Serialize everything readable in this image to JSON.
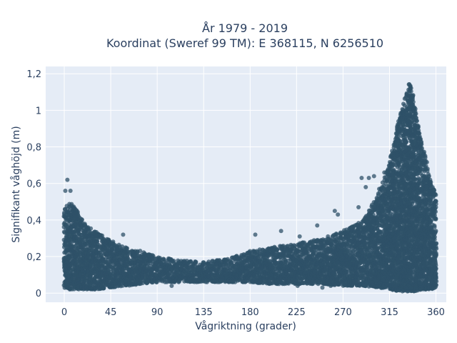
{
  "chart_data": {
    "type": "scatter",
    "title_line1": "År 1979 - 2019",
    "title_line2": "Koordinat (Sweref 99 TM): E 368115, N 6256510",
    "xlabel": "Vågriktning (grader)",
    "ylabel": "Signifikant våghöjd (m)",
    "xlim": [
      -18,
      370
    ],
    "ylim": [
      -0.05,
      1.24
    ],
    "xticks": [
      0,
      45,
      90,
      135,
      180,
      225,
      270,
      315,
      360
    ],
    "yticks": [
      0,
      0.2,
      0.4,
      0.6,
      0.8,
      1,
      1.2
    ],
    "xtick_labels": [
      "0",
      "45",
      "90",
      "135",
      "180",
      "225",
      "270",
      "315",
      "360"
    ],
    "ytick_labels": [
      "0",
      "0,2",
      "0,4",
      "0,6",
      "0,8",
      "1",
      "1,2"
    ],
    "grid": true,
    "colors": {
      "plot_bg": "#e5ecf6",
      "marker": "#2f5168"
    },
    "envelope": {
      "direction_deg": [
        0,
        5,
        10,
        20,
        30,
        45,
        60,
        75,
        90,
        110,
        135,
        160,
        180,
        200,
        225,
        250,
        270,
        290,
        305,
        315,
        322,
        330,
        335,
        340,
        345,
        350,
        355,
        360
      ],
      "min_height_m": [
        0.03,
        0.02,
        0.02,
        0.02,
        0.02,
        0.03,
        0.04,
        0.05,
        0.06,
        0.06,
        0.06,
        0.06,
        0.06,
        0.05,
        0.05,
        0.05,
        0.04,
        0.04,
        0.03,
        0.02,
        0.01,
        0.01,
        0.01,
        0.01,
        0.02,
        0.02,
        0.02,
        0.03
      ],
      "max_height_m": [
        0.46,
        0.5,
        0.47,
        0.38,
        0.34,
        0.29,
        0.25,
        0.23,
        0.2,
        0.18,
        0.17,
        0.19,
        0.23,
        0.25,
        0.27,
        0.3,
        0.34,
        0.4,
        0.55,
        0.72,
        0.9,
        1.08,
        1.17,
        1.0,
        0.85,
        0.75,
        0.6,
        0.55
      ]
    },
    "outliers": [
      {
        "x": 3,
        "y": 0.62
      },
      {
        "x": 1,
        "y": 0.56
      },
      {
        "x": 6,
        "y": 0.56
      },
      {
        "x": 57,
        "y": 0.32
      },
      {
        "x": 185,
        "y": 0.32
      },
      {
        "x": 210,
        "y": 0.34
      },
      {
        "x": 228,
        "y": 0.31
      },
      {
        "x": 245,
        "y": 0.37
      },
      {
        "x": 262,
        "y": 0.45
      },
      {
        "x": 265,
        "y": 0.43
      },
      {
        "x": 288,
        "y": 0.63
      },
      {
        "x": 295,
        "y": 0.63
      },
      {
        "x": 292,
        "y": 0.58
      },
      {
        "x": 300,
        "y": 0.64
      },
      {
        "x": 305,
        "y": 0.57
      },
      {
        "x": 310,
        "y": 0.66
      },
      {
        "x": 318,
        "y": 0.72
      },
      {
        "x": 285,
        "y": 0.47
      },
      {
        "x": 303,
        "y": 0.5
      },
      {
        "x": 320,
        "y": 0.78
      },
      {
        "x": 226,
        "y": 0.04
      },
      {
        "x": 104,
        "y": 0.04
      },
      {
        "x": 250,
        "y": 0.03
      },
      {
        "x": 258,
        "y": 0.04
      }
    ]
  }
}
